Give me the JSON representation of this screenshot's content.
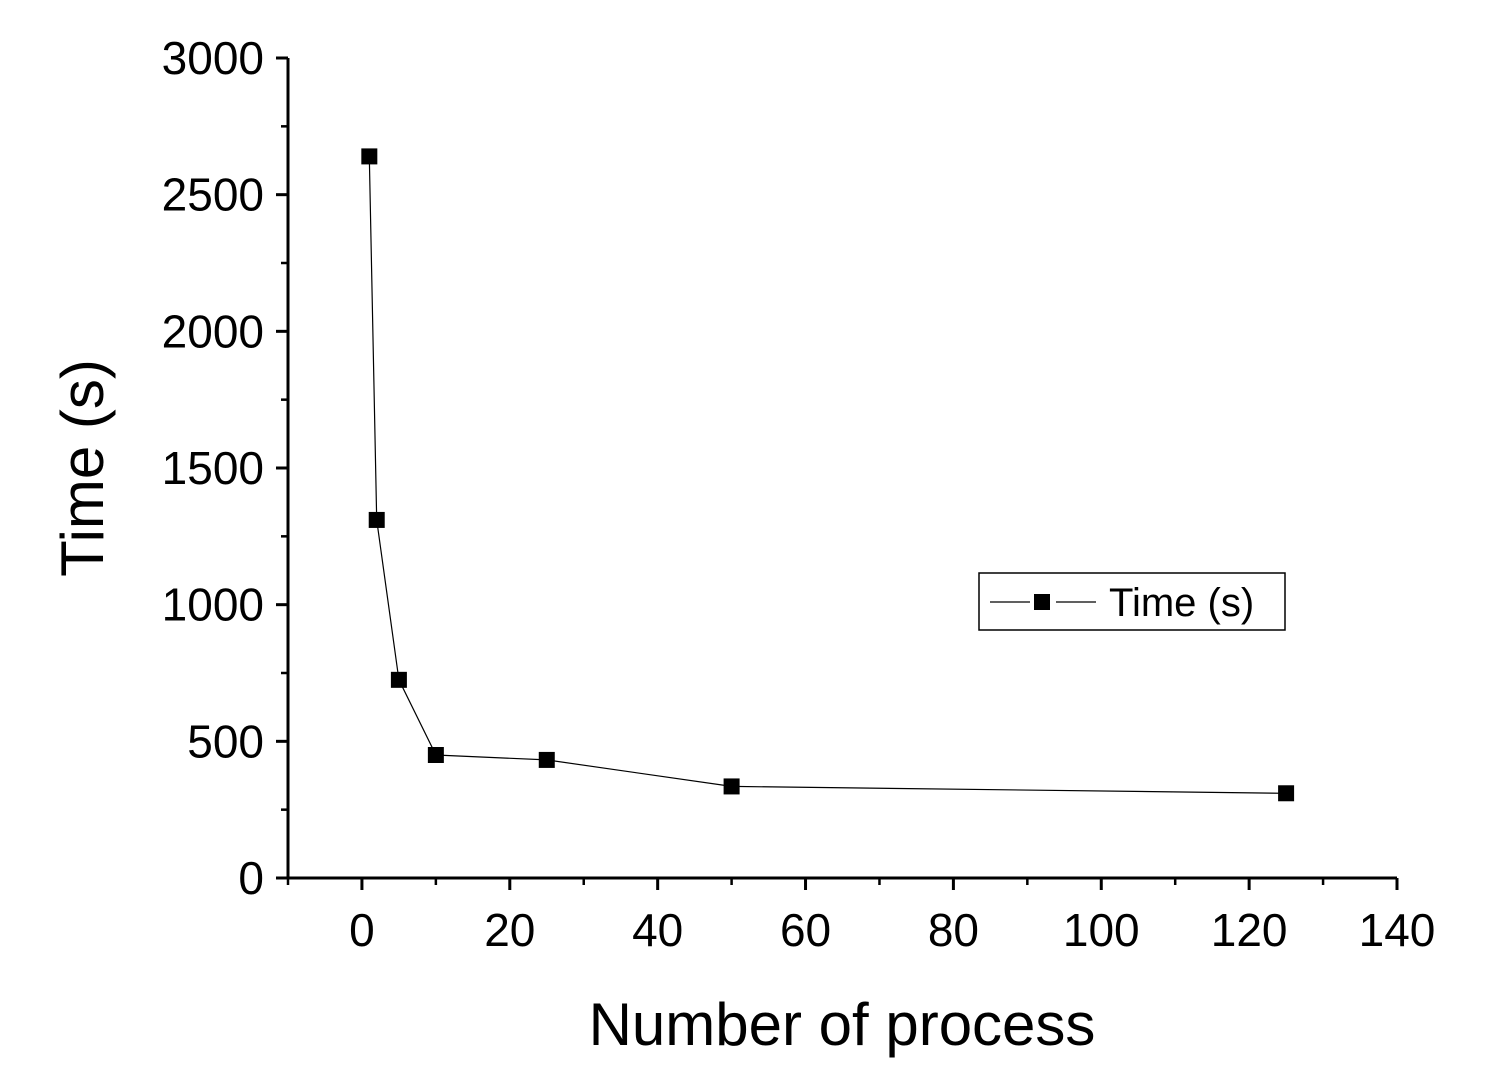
{
  "chart_data": {
    "type": "line",
    "title": "",
    "xlabel": "Number of process",
    "ylabel": "Time (s)",
    "xlim": [
      -10,
      140
    ],
    "ylim": [
      0,
      3000
    ],
    "x_ticks": [
      0,
      20,
      40,
      60,
      80,
      100,
      120,
      140
    ],
    "y_ticks": [
      0,
      500,
      1000,
      1500,
      2000,
      2500,
      3000
    ],
    "x_minor_step": 10,
    "y_minor_step": 250,
    "grid": false,
    "legend_position": "right",
    "series": [
      {
        "name": "Time (s)",
        "marker": "square",
        "color": "#000000",
        "x": [
          1,
          2,
          5,
          10,
          25,
          50,
          125
        ],
        "y": [
          2640,
          1310,
          725,
          450,
          432,
          335,
          310
        ]
      }
    ]
  }
}
